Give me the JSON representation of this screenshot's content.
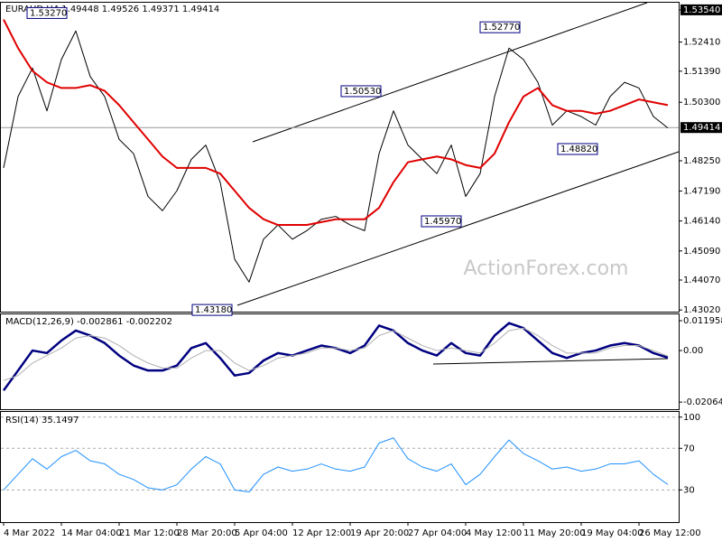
{
  "chart_data": [
    {
      "type": "line",
      "title": "EURAUD,H4  1.49448 1.49526 1.49371 1.49414",
      "series": [
        {
          "name": "Price",
          "color": "#000000",
          "values": [
            1.48,
            1.505,
            1.515,
            1.5,
            1.518,
            1.528,
            1.512,
            1.505,
            1.49,
            1.485,
            1.47,
            1.465,
            1.472,
            1.483,
            1.488,
            1.475,
            1.448,
            1.44,
            1.455,
            1.46,
            1.455,
            1.458,
            1.462,
            1.463,
            1.46,
            1.458,
            1.485,
            1.5,
            1.488,
            1.483,
            1.478,
            1.488,
            1.47,
            1.478,
            1.505,
            1.522,
            1.518,
            1.51,
            1.495,
            1.5,
            1.498,
            1.495,
            1.505,
            1.51,
            1.508,
            1.498,
            1.494
          ]
        },
        {
          "name": "MA",
          "color": "#e00000",
          "values": [
            1.532,
            1.522,
            1.514,
            1.51,
            1.508,
            1.508,
            1.509,
            1.507,
            1.502,
            1.496,
            1.49,
            1.484,
            1.48,
            1.48,
            1.48,
            1.478,
            1.472,
            1.466,
            1.462,
            1.46,
            1.46,
            1.46,
            1.461,
            1.462,
            1.462,
            1.462,
            1.466,
            1.475,
            1.482,
            1.483,
            1.484,
            1.483,
            1.481,
            1.48,
            1.485,
            1.496,
            1.505,
            1.508,
            1.502,
            1.5,
            1.5,
            1.499,
            1.5,
            1.502,
            1.504,
            1.503,
            1.502
          ]
        }
      ],
      "ylim": [
        1.4293,
        1.5379
      ],
      "yticks": [
        {
          "value": 1.5354,
          "label": "1.53540"
        },
        {
          "value": 1.5241,
          "label": "1.52410"
        },
        {
          "value": 1.5139,
          "label": "1.51390"
        },
        {
          "value": 1.503,
          "label": "1.50300"
        },
        {
          "value": 1.4825,
          "label": "1.48250"
        },
        {
          "value": 1.4719,
          "label": "1.47190"
        },
        {
          "value": 1.4614,
          "label": "1.46140"
        },
        {
          "value": 1.4509,
          "label": "1.45090"
        },
        {
          "value": 1.4407,
          "label": "1.44070"
        },
        {
          "value": 1.4302,
          "label": "1.43020"
        }
      ],
      "last_price": 1.49414,
      "annotations": [
        {
          "value": 1.5327,
          "label": "1.53270"
        },
        {
          "value": 1.5277,
          "label": "1.52770"
        },
        {
          "value": 1.5053,
          "label": "1.50530"
        },
        {
          "value": 1.4882,
          "label": "1.48820"
        },
        {
          "value": 1.4597,
          "label": "1.45970"
        },
        {
          "value": 1.4318,
          "label": "1.43180"
        }
      ],
      "watermark": "ActionForex.com"
    },
    {
      "type": "line",
      "title": "MACD(12,26,9) -0.002861 -0.002202",
      "series": [
        {
          "name": "MACD",
          "color": "#000080",
          "values": [
            -0.016,
            -0.008,
            0.0,
            -0.001,
            0.004,
            0.008,
            0.006,
            0.003,
            -0.002,
            -0.006,
            -0.008,
            -0.008,
            -0.006,
            0.001,
            0.003,
            -0.003,
            -0.01,
            -0.009,
            -0.004,
            -0.001,
            -0.002,
            0.0,
            0.002,
            0.001,
            -0.001,
            0.002,
            0.01,
            0.008,
            0.003,
            0.0,
            -0.002,
            0.003,
            -0.001,
            -0.002,
            0.006,
            0.011,
            0.009,
            0.004,
            -0.001,
            -0.003,
            -0.001,
            0.0,
            0.002,
            0.003,
            0.002,
            -0.001,
            -0.002861
          ]
        },
        {
          "name": "Signal",
          "color": "#b0b0b0",
          "values": [
            -0.012,
            -0.01,
            -0.005,
            -0.002,
            0.001,
            0.005,
            0.006,
            0.005,
            0.002,
            -0.002,
            -0.005,
            -0.007,
            -0.007,
            -0.003,
            0.0,
            0.0,
            -0.005,
            -0.008,
            -0.006,
            -0.003,
            -0.002,
            -0.001,
            0.001,
            0.001,
            0.0,
            0.001,
            0.006,
            0.008,
            0.005,
            0.002,
            0.0,
            0.001,
            0.0,
            -0.001,
            0.003,
            0.008,
            0.009,
            0.006,
            0.002,
            -0.001,
            -0.001,
            -0.001,
            0.001,
            0.002,
            0.002,
            0.0,
            -0.002202
          ]
        }
      ],
      "ylim": [
        -0.0235,
        0.0145
      ],
      "yticks": [
        0.011958,
        {
          "value": 0,
          "label": "0.00"
        },
        -0.020649
      ]
    },
    {
      "type": "line",
      "title": "RSI(14) 35.1497",
      "x": [
        "4 Mar 2022",
        null,
        null,
        null,
        "14 Mar 04:00",
        null,
        null,
        null,
        "21 Mar 12:00",
        null,
        null,
        null,
        "28 Mar 20:00",
        null,
        null,
        null,
        "5 Apr 04:00",
        null,
        null,
        null,
        "12 Apr 12:00",
        null,
        null,
        null,
        "19 Apr 20:00",
        null,
        null,
        null,
        "27 Apr 04:00",
        null,
        null,
        null,
        "4 May 12:00",
        null,
        null,
        null,
        "11 May 20:00",
        null,
        null,
        null,
        "19 May 04:00",
        null,
        null,
        null,
        "26 May 12:00",
        null,
        null
      ],
      "series": [
        {
          "name": "RSI",
          "color": "#1e90ff",
          "values": [
            30,
            45,
            60,
            50,
            62,
            68,
            58,
            55,
            45,
            40,
            32,
            30,
            35,
            50,
            62,
            55,
            30,
            28,
            45,
            52,
            48,
            50,
            55,
            50,
            48,
            52,
            75,
            80,
            60,
            52,
            48,
            55,
            35,
            45,
            62,
            78,
            65,
            58,
            50,
            52,
            48,
            50,
            55,
            55,
            58,
            45,
            35.1497
          ]
        }
      ],
      "ylim": [
        -1,
        105
      ],
      "yticks": [
        100,
        70,
        30
      ]
    }
  ]
}
